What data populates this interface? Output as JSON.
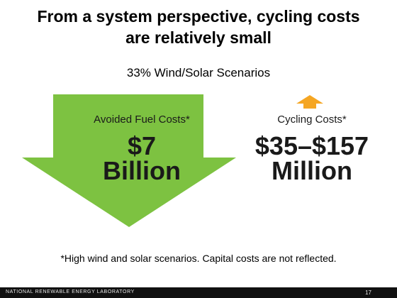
{
  "slide": {
    "title_line1": "From a system perspective, cycling costs",
    "title_line2": "are relatively small",
    "subtitle": "33% Wind/Solar Scenarios",
    "avoided_fuel": {
      "label": "Avoided Fuel Costs*",
      "value_line1": "$7",
      "value_line2": "Billion"
    },
    "cycling": {
      "label": "Cycling Costs*",
      "value_line1": "$35–$157",
      "value_line2": "Million"
    },
    "footnote": "*High wind and solar scenarios. Capital costs are not reflected."
  },
  "footer": {
    "organization": "NATIONAL RENEWABLE ENERGY LABORATORY",
    "page_number": "17"
  },
  "colors": {
    "green_arrow": "#7dc241",
    "orange_arrow": "#f5a623",
    "footer_bar": "#111111"
  }
}
